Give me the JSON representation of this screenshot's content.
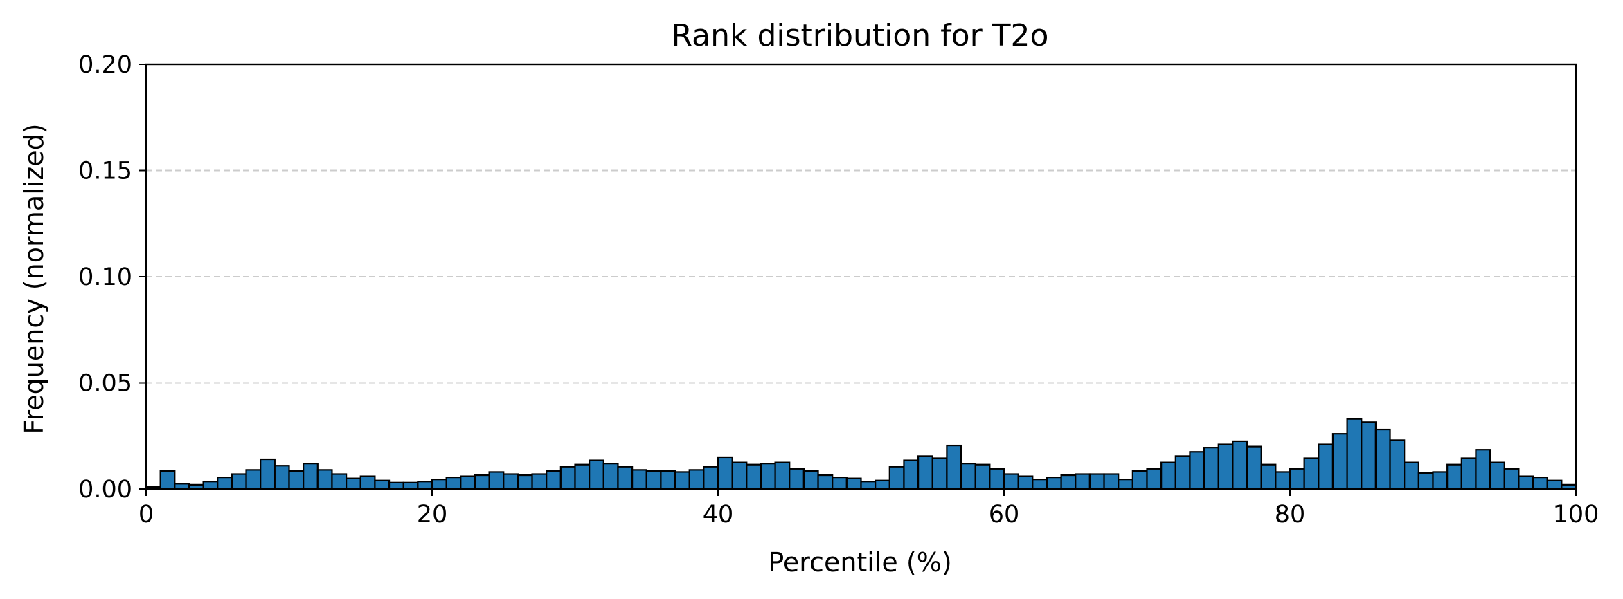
{
  "chart_data": {
    "type": "bar",
    "title": "Rank distribution for T2o",
    "xlabel": "Percentile (%)",
    "ylabel": "Frequency (normalized)",
    "xlim": [
      0,
      100
    ],
    "ylim": [
      0,
      0.2
    ],
    "xticks": [
      0,
      20,
      40,
      60,
      80,
      100
    ],
    "yticks": [
      0.0,
      0.05,
      0.1,
      0.15,
      0.2
    ],
    "xtick_labels": [
      "0",
      "20",
      "40",
      "60",
      "80",
      "100"
    ],
    "ytick_labels": [
      "0.00",
      "0.05",
      "0.10",
      "0.15",
      "0.20"
    ],
    "grid": "y-axis, dashed",
    "bin_width": 1,
    "bin_starts": [
      0,
      1,
      2,
      3,
      4,
      5,
      6,
      7,
      8,
      9,
      10,
      11,
      12,
      13,
      14,
      15,
      16,
      17,
      18,
      19,
      20,
      21,
      22,
      23,
      24,
      25,
      26,
      27,
      28,
      29,
      30,
      31,
      32,
      33,
      34,
      35,
      36,
      37,
      38,
      39,
      40,
      41,
      42,
      43,
      44,
      45,
      46,
      47,
      48,
      49,
      50,
      51,
      52,
      53,
      54,
      55,
      56,
      57,
      58,
      59,
      60,
      61,
      62,
      63,
      64,
      65,
      66,
      67,
      68,
      69,
      70,
      71,
      72,
      73,
      74,
      75,
      76,
      77,
      78,
      79,
      80,
      81,
      82,
      83,
      84,
      85,
      86,
      87,
      88,
      89,
      90,
      91,
      92,
      93,
      94,
      95,
      96,
      97,
      98,
      99
    ],
    "values": [
      0.001,
      0.0085,
      0.0025,
      0.002,
      0.0035,
      0.0055,
      0.007,
      0.009,
      0.014,
      0.011,
      0.0085,
      0.012,
      0.009,
      0.007,
      0.005,
      0.006,
      0.004,
      0.003,
      0.003,
      0.0035,
      0.0045,
      0.0055,
      0.006,
      0.0065,
      0.008,
      0.007,
      0.0065,
      0.007,
      0.0085,
      0.0105,
      0.0115,
      0.0135,
      0.012,
      0.0105,
      0.009,
      0.0085,
      0.0085,
      0.008,
      0.009,
      0.0105,
      0.015,
      0.0125,
      0.0115,
      0.012,
      0.0125,
      0.0095,
      0.0085,
      0.0065,
      0.0055,
      0.005,
      0.0035,
      0.004,
      0.0105,
      0.0135,
      0.0155,
      0.0145,
      0.0205,
      0.012,
      0.0115,
      0.0095,
      0.007,
      0.006,
      0.0045,
      0.0055,
      0.0065,
      0.007,
      0.007,
      0.007,
      0.0045,
      0.0085,
      0.0095,
      0.0125,
      0.0155,
      0.0175,
      0.0195,
      0.021,
      0.0225,
      0.02,
      0.0115,
      0.008,
      0.0095,
      0.0145,
      0.021,
      0.026,
      0.033,
      0.0315,
      0.028,
      0.023,
      0.0125,
      0.0075,
      0.008,
      0.0115,
      0.0145,
      0.0185,
      0.0125,
      0.0095,
      0.006,
      0.0055,
      0.004,
      0.002
    ],
    "bar_color": "#1f77b4",
    "edge_color": "#000000"
  }
}
